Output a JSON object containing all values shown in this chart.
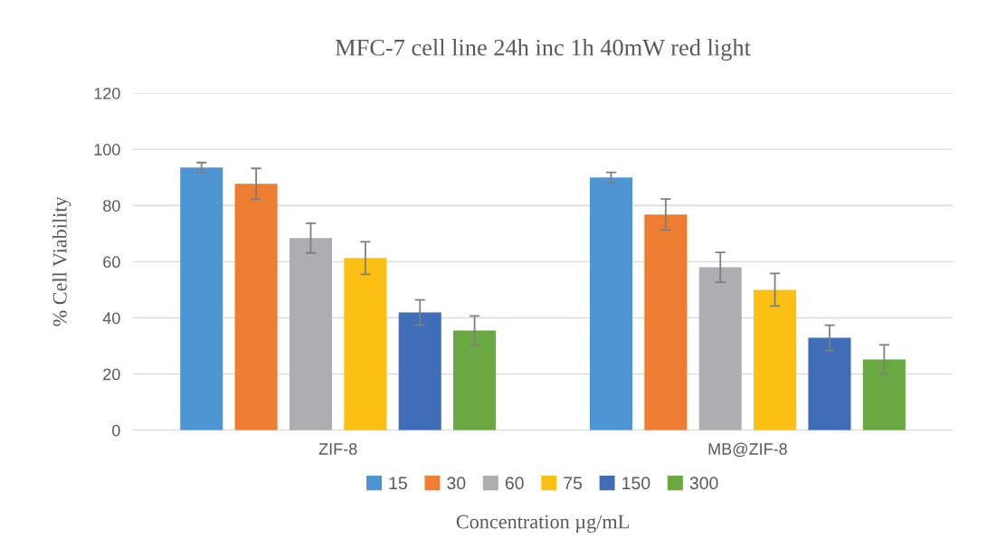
{
  "chart_data": {
    "type": "bar",
    "title": "MFC-7 cell line 24h inc 1h 40mW red light",
    "xlabel": "Concentration µg/mL",
    "ylabel": "% Cell Viability",
    "categories": [
      "ZIF-8",
      "MB@ZIF-8"
    ],
    "series": [
      {
        "name": "15",
        "color": "#4e95d4",
        "values": [
          93.5,
          90
        ],
        "errors": [
          1.8,
          1.8
        ]
      },
      {
        "name": "30",
        "color": "#ed7d31",
        "values": [
          87.7,
          76.8
        ],
        "errors": [
          5.5,
          5.5
        ]
      },
      {
        "name": "60",
        "color": "#aeaeb2",
        "values": [
          68.4,
          58
        ],
        "errors": [
          5.3,
          5.3
        ]
      },
      {
        "name": "75",
        "color": "#fcbf14",
        "values": [
          61.3,
          50
        ],
        "errors": [
          5.8,
          5.8
        ]
      },
      {
        "name": "150",
        "color": "#3f6db8",
        "values": [
          41.9,
          32.9
        ],
        "errors": [
          4.5,
          4.5
        ]
      },
      {
        "name": "300",
        "color": "#6aa842",
        "values": [
          35.5,
          25.2
        ],
        "errors": [
          5.2,
          5.2
        ]
      }
    ],
    "ylim": [
      0,
      120
    ],
    "yticks": [
      0,
      20,
      40,
      60,
      80,
      100,
      120
    ],
    "grid": "y",
    "legend": "bottom"
  }
}
